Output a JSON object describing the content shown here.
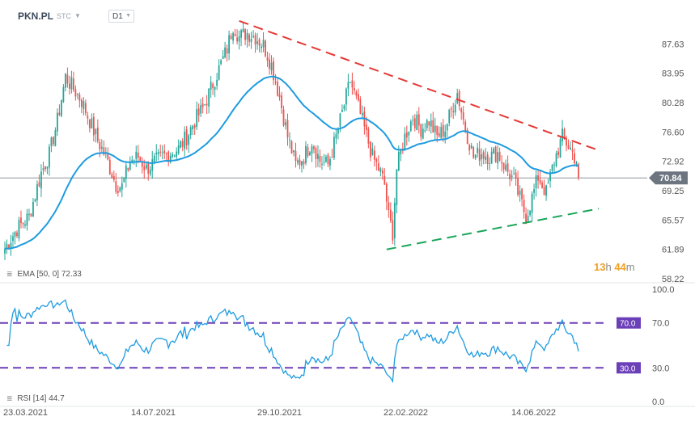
{
  "header": {
    "symbol": "PKN.PL",
    "symbol_sub": "STC",
    "timeframe": "D1"
  },
  "timer": {
    "hours": "13",
    "h_unit": "h",
    "minutes": "44",
    "m_unit": "m"
  },
  "indicators": {
    "ema_label": "EMA",
    "ema_params": "[50,  0]",
    "ema_value": "72.33",
    "rsi_label": "RSI",
    "rsi_params": "[14]",
    "rsi_value": "44.7"
  },
  "colors": {
    "up": "#26a69a",
    "down": "#ef5350",
    "ema": "#1e9be0",
    "rsi": "#1e9be0",
    "resistance": "#e53935",
    "support": "#1aa55a",
    "rsi_levels": "#6b3fb8",
    "price_tag": "#6d7680"
  },
  "chart_data": [
    {
      "type": "candlestick",
      "title": "",
      "x_ticks": [
        "23.03.2021",
        "14.07.2021",
        "29.10.2021",
        "22.02.2022",
        "14.06.2022"
      ],
      "y_ticks": [
        "58.22",
        "61.89",
        "65.57",
        "69.25",
        "72.92",
        "76.60",
        "80.28",
        "83.95",
        "87.63"
      ],
      "ylim": [
        58.22,
        91.3
      ],
      "last_price": "70.84",
      "ema_period": 50,
      "ema_last": 72.33,
      "anchors": [
        [
          0,
          62.0
        ],
        [
          6,
          64.5
        ],
        [
          12,
          66.0
        ],
        [
          18,
          71.5
        ],
        [
          22,
          73.8
        ],
        [
          26,
          78.0
        ],
        [
          30,
          83.5
        ],
        [
          34,
          82.0
        ],
        [
          38,
          80.5
        ],
        [
          42,
          78.0
        ],
        [
          46,
          75.5
        ],
        [
          50,
          73.5
        ],
        [
          55,
          70.0
        ],
        [
          58,
          69.8
        ],
        [
          62,
          73.0
        ],
        [
          66,
          73.5
        ],
        [
          70,
          72.0
        ],
        [
          74,
          72.8
        ],
        [
          78,
          73.5
        ],
        [
          82,
          74.0
        ],
        [
          86,
          74.5
        ],
        [
          90,
          76.0
        ],
        [
          94,
          78.0
        ],
        [
          98,
          79.5
        ],
        [
          102,
          82.0
        ],
        [
          106,
          84.5
        ],
        [
          110,
          87.0
        ],
        [
          113,
          90.0
        ],
        [
          116,
          88.5
        ],
        [
          120,
          89.0
        ],
        [
          124,
          88.5
        ],
        [
          128,
          87.5
        ],
        [
          132,
          85.0
        ],
        [
          136,
          81.0
        ],
        [
          140,
          76.0
        ],
        [
          144,
          72.5
        ],
        [
          148,
          73.5
        ],
        [
          152,
          75.5
        ],
        [
          156,
          73.0
        ],
        [
          160,
          72.5
        ],
        [
          164,
          76.0
        ],
        [
          168,
          80.0
        ],
        [
          171,
          83.0
        ],
        [
          174,
          80.5
        ],
        [
          178,
          77.0
        ],
        [
          182,
          73.5
        ],
        [
          186,
          71.5
        ],
        [
          188,
          70.0
        ],
        [
          190,
          66.0
        ],
        [
          192,
          64.0
        ],
        [
          194,
          72.0
        ],
        [
          198,
          76.0
        ],
        [
          202,
          78.5
        ],
        [
          206,
          77.0
        ],
        [
          210,
          78.0
        ],
        [
          214,
          76.0
        ],
        [
          218,
          77.0
        ],
        [
          222,
          80.0
        ],
        [
          224,
          81.5
        ],
        [
          228,
          77.0
        ],
        [
          232,
          73.5
        ],
        [
          236,
          74.0
        ],
        [
          240,
          73.5
        ],
        [
          244,
          74.0
        ],
        [
          248,
          72.0
        ],
        [
          252,
          70.5
        ],
        [
          256,
          67.5
        ],
        [
          258,
          66.0
        ],
        [
          260,
          67.5
        ],
        [
          264,
          71.0
        ],
        [
          268,
          69.0
        ],
        [
          272,
          73.0
        ],
        [
          276,
          76.0
        ],
        [
          280,
          74.5
        ],
        [
          283,
          73.0
        ],
        [
          284,
          70.84
        ]
      ],
      "resistance_line": [
        [
          116,
          90.5
        ],
        [
          294,
          74.3
        ]
      ],
      "support_line": [
        [
          189,
          61.89
        ],
        [
          294,
          67.0
        ]
      ]
    },
    {
      "type": "line",
      "title": "",
      "name": "RSI",
      "period": 14,
      "ylim": [
        0,
        100
      ],
      "y_ticks": [
        "100.0",
        "70.0",
        "30.0",
        "0.0"
      ],
      "levels": [
        70,
        30
      ],
      "level_labels": [
        "70.0",
        "30.0"
      ],
      "last": 44.7
    }
  ]
}
